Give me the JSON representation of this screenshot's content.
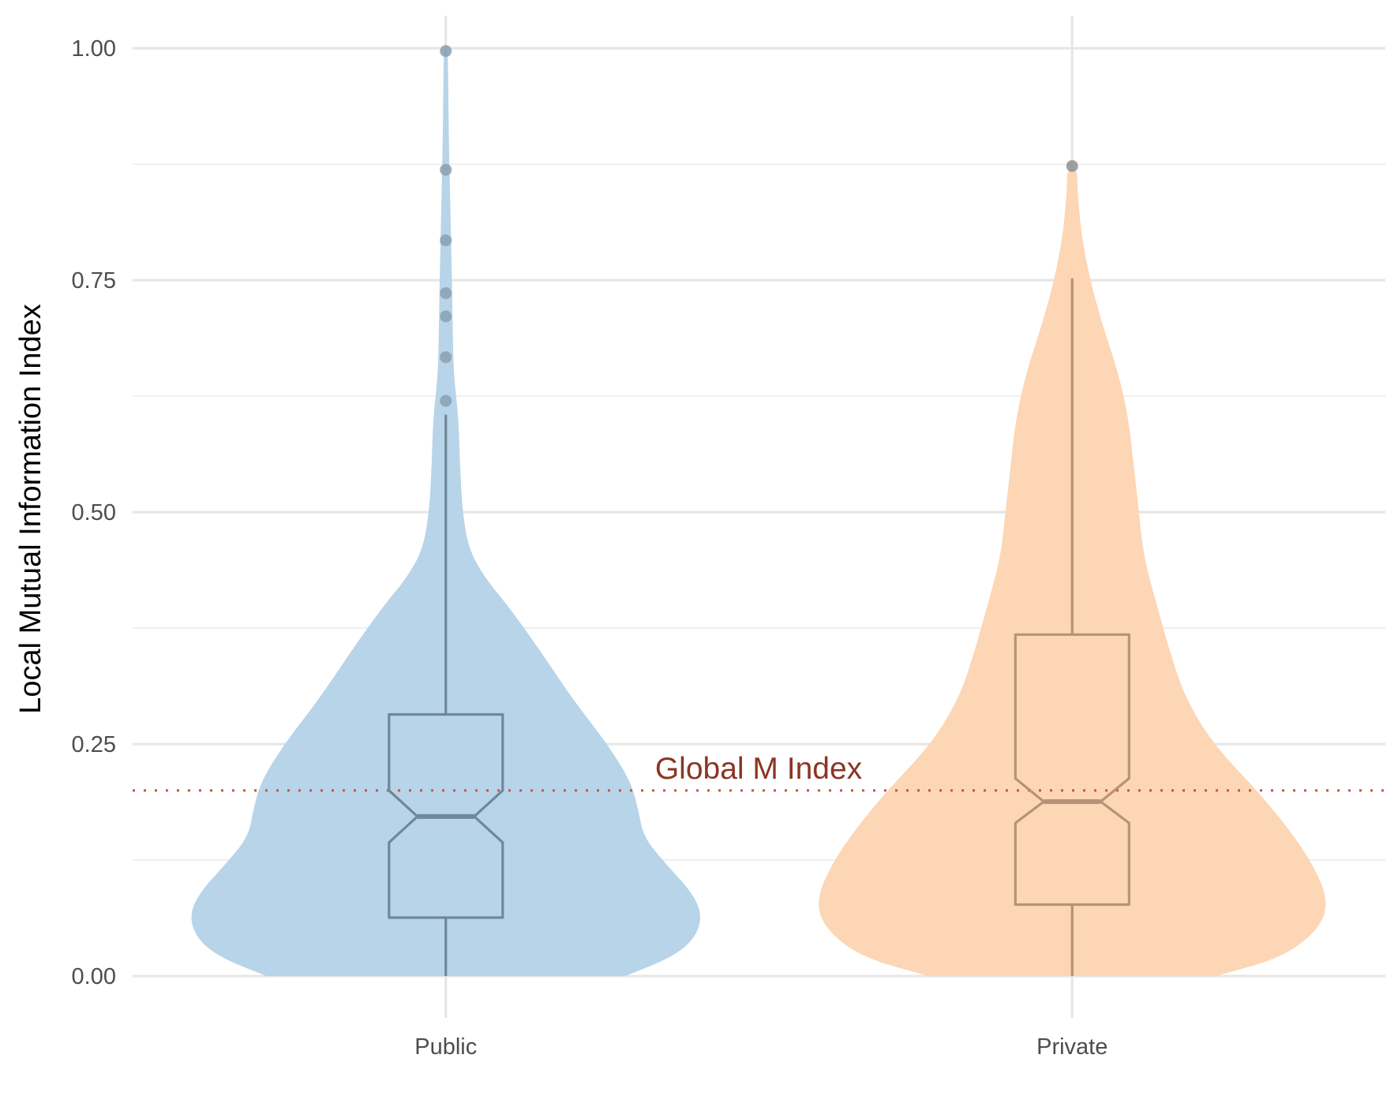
{
  "chart_data": {
    "type": "violin",
    "title": "",
    "xlabel": "",
    "ylabel": "Local Mutual Information Index",
    "ylim": [
      -0.045,
      1.035
    ],
    "yticks": [
      0.0,
      0.25,
      0.5,
      0.75,
      1.0
    ],
    "ytick_labels": [
      "0.00",
      "0.25",
      "0.50",
      "0.75",
      "1.00"
    ],
    "yminor": [
      0.125,
      0.375,
      0.625,
      0.875
    ],
    "categories": [
      "Public",
      "Private"
    ],
    "grid": true,
    "legend": "none",
    "reference_line": {
      "label": "Global M Index",
      "y": 0.2,
      "color": "#c8553d",
      "label_color": "#8b3524",
      "style": "dotted"
    },
    "series": [
      {
        "category": "Public",
        "fill": "#b8d4e9",
        "box_color": "#6f8799",
        "outlier_color": "#8a9fb1",
        "box": {
          "whisker_low": 0.0,
          "q1": 0.063,
          "median": 0.172,
          "q3": 0.282,
          "whisker_high": 0.605,
          "notch_low": 0.144,
          "notch_high": 0.2
        },
        "outliers": [
          0.62,
          0.667,
          0.711,
          0.736,
          0.793,
          0.869,
          0.997
        ],
        "density": [
          [
            0.0,
            0.7
          ],
          [
            0.02,
            0.88
          ],
          [
            0.04,
            0.97
          ],
          [
            0.065,
            1.0
          ],
          [
            0.09,
            0.96
          ],
          [
            0.12,
            0.86
          ],
          [
            0.15,
            0.77
          ],
          [
            0.18,
            0.75
          ],
          [
            0.21,
            0.72
          ],
          [
            0.25,
            0.63
          ],
          [
            0.3,
            0.49
          ],
          [
            0.35,
            0.37
          ],
          [
            0.4,
            0.24
          ],
          [
            0.43,
            0.15
          ],
          [
            0.46,
            0.09
          ],
          [
            0.5,
            0.065
          ],
          [
            0.55,
            0.055
          ],
          [
            0.6,
            0.05
          ],
          [
            0.65,
            0.03
          ],
          [
            0.7,
            0.027
          ],
          [
            0.75,
            0.024
          ],
          [
            0.8,
            0.02
          ],
          [
            0.85,
            0.016
          ],
          [
            0.9,
            0.012
          ],
          [
            0.95,
            0.01
          ],
          [
            0.99,
            0.008
          ],
          [
            1.0,
            0.006
          ]
        ]
      },
      {
        "category": "Private",
        "fill": "#fdd6b5",
        "box_color": "#b89276",
        "outlier_color": "#8f8f8f",
        "box": {
          "whisker_low": 0.0,
          "q1": 0.077,
          "median": 0.188,
          "q3": 0.368,
          "whisker_high": 0.752,
          "notch_low": 0.165,
          "notch_high": 0.213
        },
        "outliers": [
          0.873
        ],
        "density": [
          [
            0.0,
            0.56
          ],
          [
            0.02,
            0.82
          ],
          [
            0.05,
            0.96
          ],
          [
            0.08,
            1.0
          ],
          [
            0.12,
            0.94
          ],
          [
            0.16,
            0.84
          ],
          [
            0.2,
            0.72
          ],
          [
            0.25,
            0.55
          ],
          [
            0.3,
            0.44
          ],
          [
            0.35,
            0.38
          ],
          [
            0.4,
            0.33
          ],
          [
            0.45,
            0.28
          ],
          [
            0.5,
            0.26
          ],
          [
            0.55,
            0.24
          ],
          [
            0.6,
            0.22
          ],
          [
            0.65,
            0.18
          ],
          [
            0.7,
            0.12
          ],
          [
            0.75,
            0.07
          ],
          [
            0.8,
            0.035
          ],
          [
            0.85,
            0.02
          ],
          [
            0.87,
            0.02
          ]
        ]
      }
    ]
  }
}
